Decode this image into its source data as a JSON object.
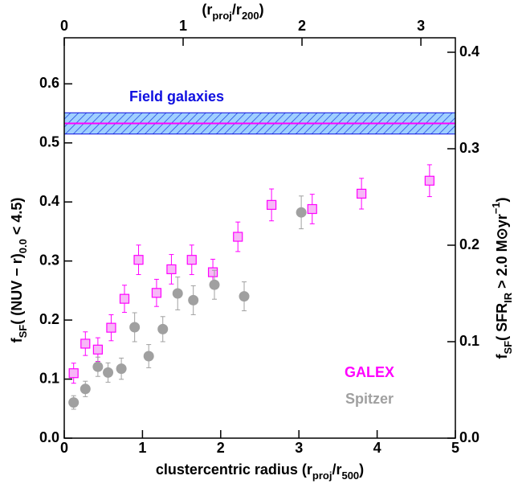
{
  "chart_data": {
    "type": "scatter",
    "xlabel": [
      "clustercentric radius (r",
      "proj",
      "/r",
      "500",
      ")"
    ],
    "x2label": [
      "(r",
      "proj",
      "/r",
      "200",
      ")"
    ],
    "ylabel": [
      "f",
      "SF",
      "( (NUV − r)",
      "0.0",
      " < 4.5)"
    ],
    "y2label": [
      "f",
      "SF",
      "( SFR",
      "IR",
      " > 2.0 M⊙yr",
      "−1",
      ")"
    ],
    "xlim": [
      0,
      5
    ],
    "xticks": [
      0,
      1,
      2,
      3,
      4,
      5
    ],
    "x2lim": [
      0,
      3.29
    ],
    "x2ticks": [
      0,
      1,
      2,
      3
    ],
    "ylim": [
      0,
      0.678
    ],
    "yticks": [
      {
        "value": 0,
        "label": "0.0"
      },
      0.1,
      0.2,
      0.3,
      0.4,
      0.5,
      0.6
    ],
    "y2lim": [
      0,
      0.415
    ],
    "y2ticks": [
      {
        "value": 0,
        "label": "0.0"
      },
      0.1,
      0.2,
      0.3,
      0.4
    ],
    "field": {
      "label": "Field galaxies",
      "value": 0.533,
      "error": 0.018,
      "color": "#1010e0",
      "line_color": "#ff00ff"
    },
    "series": [
      {
        "name": "GALEX",
        "color": "#ff00ff",
        "fill": "#f7b8f7",
        "marker": "square",
        "x": [
          0.12,
          0.27,
          0.43,
          0.6,
          0.77,
          0.95,
          1.18,
          1.37,
          1.63,
          1.9,
          2.22,
          2.65,
          3.17,
          3.8,
          4.67
        ],
        "values": [
          0.11,
          0.16,
          0.15,
          0.187,
          0.236,
          0.302,
          0.246,
          0.286,
          0.302,
          0.281,
          0.341,
          0.395,
          0.388,
          0.414,
          0.436
        ],
        "errors": [
          0.017,
          0.02,
          0.02,
          0.022,
          0.023,
          0.025,
          0.023,
          0.025,
          0.025,
          0.022,
          0.025,
          0.027,
          0.025,
          0.026,
          0.027
        ]
      },
      {
        "name": "Spitzer",
        "color": "#a0a0a0",
        "fill": "#a0a0a0",
        "marker": "circle",
        "axis": "y2",
        "x": [
          0.12,
          0.27,
          0.43,
          0.56,
          0.73,
          0.9,
          1.08,
          1.26,
          1.45,
          1.65,
          1.92,
          2.3,
          3.03
        ],
        "values": [
          0.037,
          0.051,
          0.074,
          0.068,
          0.072,
          0.115,
          0.085,
          0.113,
          0.15,
          0.143,
          0.159,
          0.147,
          0.234
        ],
        "errors": [
          0.007,
          0.008,
          0.01,
          0.01,
          0.011,
          0.015,
          0.012,
          0.013,
          0.017,
          0.015,
          0.015,
          0.015,
          0.017
        ]
      }
    ]
  }
}
